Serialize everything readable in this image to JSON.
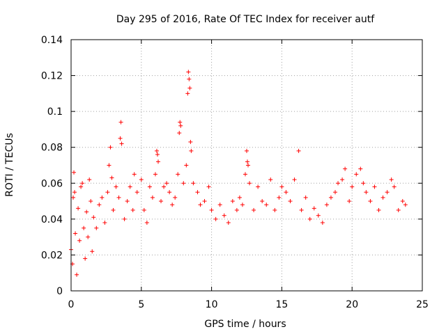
{
  "chart_data": {
    "type": "scatter",
    "title": "Day 295 of 2016, Rate Of TEC Index for receiver autf",
    "xlabel": "GPS time / hours",
    "ylabel": "ROTI / TECUs",
    "xlim": [
      0,
      25
    ],
    "ylim": [
      0,
      0.14
    ],
    "xticks": [
      0,
      5,
      10,
      15,
      20,
      25
    ],
    "xtick_labels": [
      "0",
      "5",
      "10",
      "15",
      "20",
      "25"
    ],
    "yticks": [
      0,
      0.02,
      0.04,
      0.06,
      0.08,
      0.1,
      0.12,
      0.14
    ],
    "ytick_labels": [
      "0",
      "0.02",
      "0.04",
      "0.06",
      "0.08",
      "0.1",
      "0.12",
      "0.14"
    ],
    "grid": true,
    "marker": "+",
    "series": [
      {
        "name": "ROTI",
        "color": "#ff0000",
        "points": [
          [
            0.0,
            0.023
          ],
          [
            0.1,
            0.015
          ],
          [
            0.15,
            0.052
          ],
          [
            0.2,
            0.066
          ],
          [
            0.25,
            0.055
          ],
          [
            0.3,
            0.032
          ],
          [
            0.4,
            0.009
          ],
          [
            0.5,
            0.046
          ],
          [
            0.6,
            0.028
          ],
          [
            0.7,
            0.058
          ],
          [
            0.8,
            0.06
          ],
          [
            0.9,
            0.035
          ],
          [
            1.0,
            0.018
          ],
          [
            1.1,
            0.044
          ],
          [
            1.2,
            0.03
          ],
          [
            1.3,
            0.062
          ],
          [
            1.4,
            0.05
          ],
          [
            1.5,
            0.022
          ],
          [
            1.6,
            0.041
          ],
          [
            1.8,
            0.035
          ],
          [
            2.0,
            0.048
          ],
          [
            2.2,
            0.052
          ],
          [
            2.4,
            0.038
          ],
          [
            2.6,
            0.055
          ],
          [
            2.7,
            0.07
          ],
          [
            2.8,
            0.08
          ],
          [
            2.9,
            0.063
          ],
          [
            3.0,
            0.045
          ],
          [
            3.2,
            0.058
          ],
          [
            3.4,
            0.052
          ],
          [
            3.5,
            0.085
          ],
          [
            3.55,
            0.094
          ],
          [
            3.6,
            0.082
          ],
          [
            3.8,
            0.04
          ],
          [
            4.0,
            0.05
          ],
          [
            4.2,
            0.058
          ],
          [
            4.4,
            0.045
          ],
          [
            4.5,
            0.065
          ],
          [
            4.7,
            0.055
          ],
          [
            5.0,
            0.062
          ],
          [
            5.2,
            0.045
          ],
          [
            5.4,
            0.038
          ],
          [
            5.6,
            0.058
          ],
          [
            5.8,
            0.052
          ],
          [
            6.0,
            0.065
          ],
          [
            6.1,
            0.078
          ],
          [
            6.15,
            0.076
          ],
          [
            6.2,
            0.072
          ],
          [
            6.4,
            0.05
          ],
          [
            6.6,
            0.058
          ],
          [
            6.8,
            0.06
          ],
          [
            7.0,
            0.055
          ],
          [
            7.2,
            0.048
          ],
          [
            7.4,
            0.052
          ],
          [
            7.6,
            0.065
          ],
          [
            7.7,
            0.088
          ],
          [
            7.75,
            0.094
          ],
          [
            7.8,
            0.092
          ],
          [
            8.0,
            0.06
          ],
          [
            8.2,
            0.07
          ],
          [
            8.3,
            0.11
          ],
          [
            8.35,
            0.122
          ],
          [
            8.4,
            0.118
          ],
          [
            8.45,
            0.113
          ],
          [
            8.5,
            0.083
          ],
          [
            8.55,
            0.078
          ],
          [
            8.7,
            0.06
          ],
          [
            9.0,
            0.055
          ],
          [
            9.2,
            0.048
          ],
          [
            9.5,
            0.05
          ],
          [
            9.8,
            0.058
          ],
          [
            10.0,
            0.045
          ],
          [
            10.3,
            0.04
          ],
          [
            10.6,
            0.048
          ],
          [
            10.9,
            0.042
          ],
          [
            11.2,
            0.038
          ],
          [
            11.5,
            0.05
          ],
          [
            11.8,
            0.045
          ],
          [
            12.0,
            0.052
          ],
          [
            12.2,
            0.048
          ],
          [
            12.4,
            0.065
          ],
          [
            12.5,
            0.078
          ],
          [
            12.55,
            0.072
          ],
          [
            12.6,
            0.07
          ],
          [
            12.7,
            0.06
          ],
          [
            13.0,
            0.045
          ],
          [
            13.3,
            0.058
          ],
          [
            13.6,
            0.05
          ],
          [
            13.9,
            0.048
          ],
          [
            14.2,
            0.062
          ],
          [
            14.5,
            0.045
          ],
          [
            14.8,
            0.052
          ],
          [
            15.0,
            0.058
          ],
          [
            15.3,
            0.055
          ],
          [
            15.6,
            0.05
          ],
          [
            15.9,
            0.062
          ],
          [
            16.2,
            0.078
          ],
          [
            16.4,
            0.045
          ],
          [
            16.7,
            0.052
          ],
          [
            17.0,
            0.04
          ],
          [
            17.3,
            0.046
          ],
          [
            17.6,
            0.042
          ],
          [
            17.9,
            0.038
          ],
          [
            18.2,
            0.048
          ],
          [
            18.5,
            0.052
          ],
          [
            18.8,
            0.055
          ],
          [
            19.0,
            0.06
          ],
          [
            19.3,
            0.062
          ],
          [
            19.5,
            0.068
          ],
          [
            19.8,
            0.05
          ],
          [
            20.0,
            0.058
          ],
          [
            20.3,
            0.065
          ],
          [
            20.6,
            0.068
          ],
          [
            20.8,
            0.06
          ],
          [
            21.0,
            0.055
          ],
          [
            21.3,
            0.05
          ],
          [
            21.6,
            0.058
          ],
          [
            21.9,
            0.045
          ],
          [
            22.2,
            0.052
          ],
          [
            22.5,
            0.055
          ],
          [
            22.8,
            0.062
          ],
          [
            23.0,
            0.058
          ],
          [
            23.3,
            0.045
          ],
          [
            23.6,
            0.05
          ],
          [
            23.8,
            0.048
          ]
        ]
      }
    ]
  }
}
